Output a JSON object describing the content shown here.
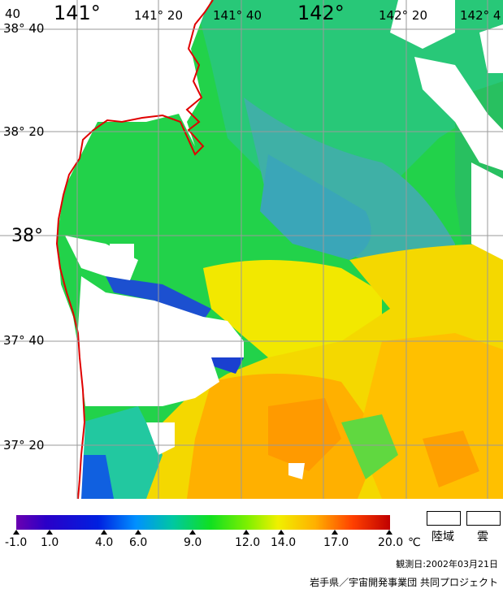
{
  "map": {
    "lon_labels": [
      "141°",
      "141° 20",
      "141° 40",
      "142°",
      "142° 20",
      "142° 4"
    ],
    "lat_labels": [
      "38° 40",
      "38° 20",
      "38°",
      "37° 40",
      "37° 20"
    ],
    "corner_label": "40"
  },
  "legend": {
    "unit": "℃",
    "ticks": [
      "-1.0",
      "1.0",
      "4.0",
      "6.0",
      "9.0",
      "12.0",
      "14.0",
      "17.0",
      "20.0"
    ],
    "land_label": "陸域",
    "cloud_label": "雲",
    "colors": [
      "#6a00b0",
      "#0020e0",
      "#0090ff",
      "#10e020",
      "#f0f000",
      "#ffb000",
      "#ff4000",
      "#c00000"
    ]
  },
  "footer": {
    "observation_date": "観測日:2002年03月21日",
    "credit": "岩手県／宇宙開発事業団 共同プロジェクト"
  }
}
